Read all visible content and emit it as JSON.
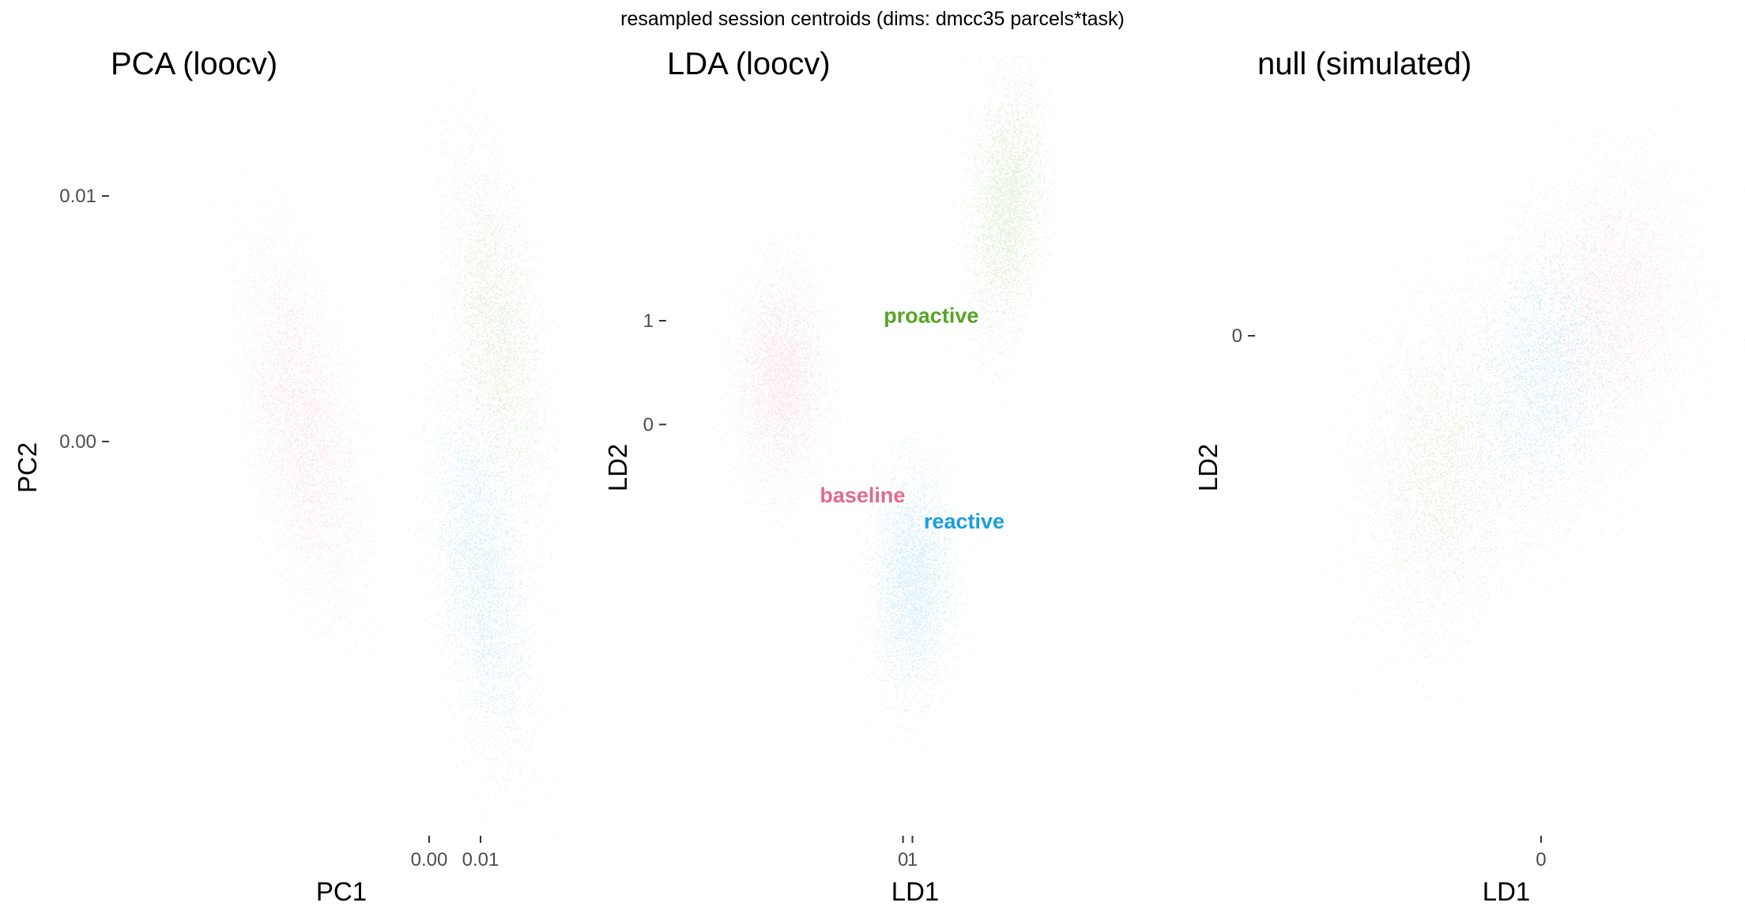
{
  "figure": {
    "suptitle": "resampled session centroids (dims: dmcc35 parcels*task)"
  },
  "colors": {
    "baseline": "#e26b8d",
    "proactive": "#54a524",
    "reactive": "#1b9ee0"
  },
  "chart_data": [
    {
      "type": "scatter",
      "title": "PCA (loocv)",
      "xlabel": "PC1",
      "ylabel": "PC2",
      "xticks": [
        {
          "value": 0.0,
          "label": "0.00"
        },
        {
          "value": 0.01,
          "label": "0.01"
        }
      ],
      "yticks": [
        {
          "value": 0.0,
          "label": "0.00"
        },
        {
          "value": 0.01,
          "label": "0.01"
        }
      ],
      "xlim": [
        -0.062,
        0.028
      ],
      "ylim": [
        -0.0158,
        0.0138
      ],
      "grid": false,
      "legend": "none",
      "group_labels": [],
      "series": [
        {
          "group": "baseline",
          "center": [
            -0.025,
            0.0007
          ],
          "sd": [
            0.0055,
            0.0035
          ],
          "rho": -0.5
        },
        {
          "group": "proactive",
          "center": [
            0.013,
            0.0045
          ],
          "sd": [
            0.0045,
            0.0035
          ],
          "rho": -0.45
        },
        {
          "group": "reactive",
          "center": [
            0.01,
            -0.0055
          ],
          "sd": [
            0.0045,
            0.0035
          ],
          "rho": -0.45
        }
      ]
    },
    {
      "type": "scatter",
      "title": "LDA (loocv)",
      "xlabel": "LD1",
      "ylabel": "LD2",
      "xticks": [
        {
          "value": 0,
          "label": "0"
        },
        {
          "value": 1,
          "label": "1"
        }
      ],
      "yticks": [
        {
          "value": 0,
          "label": "0"
        },
        {
          "value": 1,
          "label": "1"
        }
      ],
      "xlim": [
        -25,
        27.5
      ],
      "ylim": [
        -3.9,
        3.1
      ],
      "grid": false,
      "legend": "none",
      "group_labels": [
        {
          "group": "proactive",
          "text": "proactive",
          "x": 3,
          "y": 0.98
        },
        {
          "group": "baseline",
          "text": "baseline",
          "x": -4.3,
          "y": -0.75
        },
        {
          "group": "reactive",
          "text": "reactive",
          "x": 6.5,
          "y": -1.0
        }
      ],
      "series": [
        {
          "group": "baseline",
          "center": [
            -13,
            0.45
          ],
          "sd": [
            2.3,
            0.5
          ],
          "rho": 0
        },
        {
          "group": "proactive",
          "center": [
            11,
            2.1
          ],
          "sd": [
            1.9,
            0.58
          ],
          "rho": 0.25
        },
        {
          "group": "reactive",
          "center": [
            1,
            -1.5
          ],
          "sd": [
            2.0,
            0.52
          ],
          "rho": 0
        }
      ]
    },
    {
      "type": "scatter",
      "title": "null (simulated)",
      "xlabel": "LD1",
      "ylabel": "LD2",
      "xticks": [
        {
          "value": 0,
          "label": "0"
        }
      ],
      "yticks": [
        {
          "value": 0,
          "label": "0"
        }
      ],
      "xlim": [
        -4.7,
        3.2
      ],
      "ylim": [
        -3.6,
        1.7
      ],
      "grid": false,
      "legend": "none",
      "group_labels": [],
      "series": [
        {
          "group": "baseline",
          "center": [
            1.2,
            0.22
          ],
          "sd": [
            0.65,
            0.5
          ],
          "rho": 0.15
        },
        {
          "group": "proactive",
          "center": [
            -1.7,
            -1.0
          ],
          "sd": [
            0.6,
            0.55
          ],
          "rho": 0.1
        },
        {
          "group": "reactive",
          "center": [
            0.0,
            -0.3
          ],
          "sd": [
            0.55,
            0.5
          ],
          "rho": 0.1
        }
      ]
    }
  ]
}
